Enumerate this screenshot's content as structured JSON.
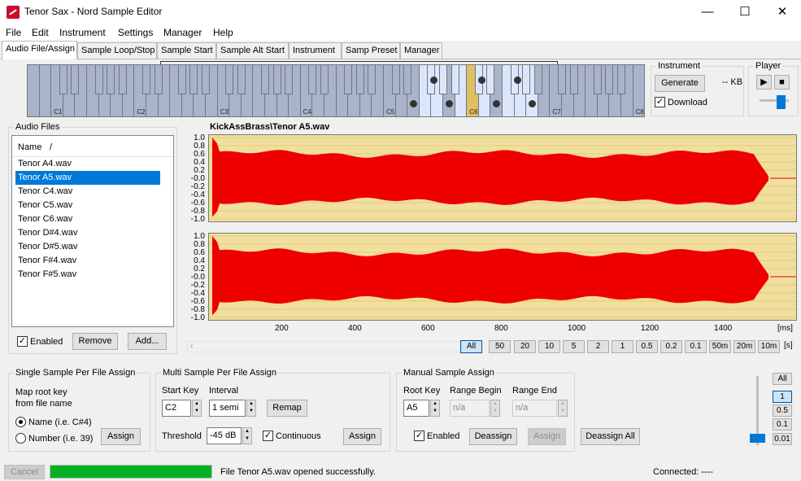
{
  "window": {
    "title": "Tenor Sax - Nord Sample Editor",
    "minimize": "—",
    "maximize": "☐",
    "close": "✕"
  },
  "menu": [
    "File",
    "Edit",
    "Instrument",
    "Settings",
    "Manager",
    "Help"
  ],
  "tabs": [
    "Audio File/Assign",
    "Sample Loop/Stop",
    "Sample Start",
    "Sample Alt Start",
    "Instrument",
    "Samp Preset",
    "Manager"
  ],
  "keyboard": {
    "c_labels": [
      "C1",
      "C2",
      "C3",
      "C4",
      "C5",
      "C6",
      "C7",
      "C8"
    ]
  },
  "instrument": {
    "legend": "Instrument",
    "generate": "Generate",
    "size": "-- KB",
    "download_label": "Download",
    "download_checked": true
  },
  "player": {
    "legend": "Player",
    "play_icon": "play-icon",
    "stop_icon": "stop-icon"
  },
  "audio_files": {
    "legend": "Audio Files",
    "header": "Name",
    "sort_glyph": "/",
    "items": [
      "Tenor A4.wav",
      "Tenor A5.wav",
      "Tenor C4.wav",
      "Tenor C5.wav",
      "Tenor C6.wav",
      "Tenor D#4.wav",
      "Tenor D#5.wav",
      "Tenor F#4.wav",
      "Tenor F#5.wav"
    ],
    "selected": "Tenor A5.wav",
    "enabled_label": "Enabled",
    "remove": "Remove",
    "add": "Add..."
  },
  "waveform": {
    "title": "KickAssBrass\\Tenor A5.wav",
    "y_ticks": [
      "1.0",
      "0.8",
      "0.6",
      "0.4",
      "0.2",
      "-0.0",
      "-0.2",
      "-0.4",
      "-0.6",
      "-0.8",
      "-1.0"
    ],
    "x_ticks": [
      "200",
      "400",
      "600",
      "800",
      "1000",
      "1200",
      "1400"
    ],
    "x_unit": "[ms]",
    "zoom": [
      "All",
      "50",
      "20",
      "10",
      "5",
      "2",
      "1",
      "0.5",
      "0.2",
      "0.1",
      "50m",
      "20m",
      "10m"
    ],
    "zoom_selected": "All",
    "zoom_unit": "[s]"
  },
  "single_assign": {
    "legend": "Single Sample Per File Assign",
    "desc1": "Map root key",
    "desc2": "from file name",
    "opt_name": "Name (i.e. C#4)",
    "opt_number": "Number (i.e. 39)",
    "assign": "Assign"
  },
  "multi_assign": {
    "legend": "Multi Sample Per File Assign",
    "start_key_label": "Start Key",
    "start_key": "C2",
    "interval_label": "Interval",
    "interval": "1 semi",
    "remap": "Remap",
    "threshold_label": "Threshold",
    "threshold": "-45 dB",
    "continuous_label": "Continuous",
    "assign": "Assign"
  },
  "manual_assign": {
    "legend": "Manual Sample Assign",
    "root_key_label": "Root Key",
    "root_key": "A5",
    "range_begin_label": "Range Begin",
    "range_begin": "n/a",
    "range_end_label": "Range End",
    "range_end": "n/a",
    "enabled_label": "Enabled",
    "deassign": "Deassign",
    "assign": "Assign",
    "deassign_all": "Deassign All"
  },
  "vzoom": {
    "all": "All",
    "levels": [
      "1",
      "0.5",
      "0.1",
      "0.01"
    ],
    "selected": "1"
  },
  "status": {
    "cancel": "Cancel",
    "progress": 1.0,
    "message": "File Tenor A5.wav opened successfully.",
    "connected": "Connected: ----"
  },
  "colors": {
    "wave": "#ee0000",
    "wave_bg": "#f0dfa1",
    "selection": "#0078d7",
    "progress": "#06b025",
    "key_highlight": "#dce6fb"
  }
}
